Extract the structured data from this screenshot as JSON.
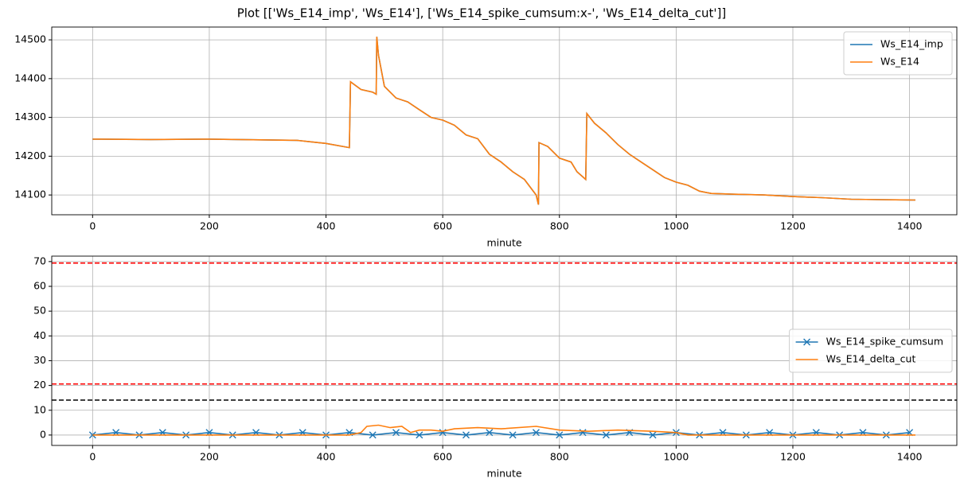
{
  "title": "Plot [['Ws_E14_imp', 'Ws_E14'], ['Ws_E14_spike_cumsum:x-', 'Ws_E14_delta_cut']]",
  "chart_data": [
    {
      "type": "line",
      "xlabel": "minute",
      "grid": true,
      "legend": "upper right",
      "xlim": [
        -70,
        1481
      ],
      "xticks": [
        0,
        200,
        400,
        600,
        800,
        1000,
        1200,
        1400
      ],
      "ylim": [
        14049,
        14533
      ],
      "yticks": [
        14100,
        14200,
        14300,
        14400,
        14500
      ],
      "x": [
        0,
        100,
        200,
        300,
        350,
        400,
        440,
        442,
        460,
        480,
        486,
        487,
        490,
        500,
        520,
        540,
        560,
        580,
        600,
        620,
        640,
        660,
        680,
        700,
        720,
        740,
        760,
        764,
        765,
        780,
        800,
        820,
        830,
        845,
        847,
        860,
        880,
        900,
        920,
        940,
        960,
        980,
        1000,
        1020,
        1040,
        1060,
        1100,
        1150,
        1200,
        1250,
        1300,
        1350,
        1410
      ],
      "series": [
        {
          "name": "Ws_E14_imp",
          "color": "#1f77b4",
          "values": [
            14244,
            14243,
            14244,
            14242,
            14241,
            14233,
            14222,
            14392,
            14372,
            14365,
            14360,
            14508,
            14460,
            14380,
            14350,
            14340,
            14320,
            14300,
            14293,
            14280,
            14255,
            14245,
            14205,
            14185,
            14160,
            14140,
            14100,
            14075,
            14235,
            14225,
            14195,
            14185,
            14160,
            14140,
            14310,
            14285,
            14260,
            14230,
            14205,
            14185,
            14165,
            14145,
            14133,
            14125,
            14110,
            14104,
            14102,
            14100,
            14096,
            14093,
            14089,
            14088,
            14087
          ]
        },
        {
          "name": "Ws_E14",
          "color": "#ff7f0e",
          "values": [
            14244,
            14243,
            14244,
            14242,
            14241,
            14233,
            14222,
            14392,
            14372,
            14365,
            14360,
            14508,
            14460,
            14380,
            14350,
            14340,
            14320,
            14300,
            14293,
            14280,
            14255,
            14245,
            14205,
            14185,
            14160,
            14140,
            14100,
            14075,
            14235,
            14225,
            14195,
            14185,
            14160,
            14140,
            14310,
            14285,
            14260,
            14230,
            14205,
            14185,
            14165,
            14145,
            14133,
            14125,
            14110,
            14104,
            14102,
            14100,
            14096,
            14093,
            14089,
            14088,
            14087
          ]
        }
      ]
    },
    {
      "type": "line",
      "xlabel": "minute",
      "grid": true,
      "legend": "center right",
      "xlim": [
        -70,
        1481
      ],
      "xticks": [
        0,
        200,
        400,
        600,
        800,
        1000,
        1200,
        1400
      ],
      "ylim": [
        -4.2,
        72.2
      ],
      "yticks": [
        0,
        10,
        20,
        30,
        40,
        50,
        60,
        70
      ],
      "hlines": [
        {
          "value": 69.4,
          "color": "#ff0000",
          "linestyle": "dashed"
        },
        {
          "value": 20.6,
          "color": "#ff0000",
          "linestyle": "dashed"
        },
        {
          "value": 14.1,
          "color": "#000000",
          "linestyle": "dashed"
        }
      ],
      "series": [
        {
          "name": "Ws_E14_spike_cumsum",
          "color": "#1f77b4",
          "marker": "x",
          "x": [
            0,
            40,
            80,
            120,
            160,
            200,
            240,
            280,
            320,
            360,
            400,
            440,
            480,
            520,
            560,
            600,
            640,
            680,
            720,
            760,
            800,
            840,
            880,
            920,
            960,
            1000,
            1040,
            1080,
            1120,
            1160,
            1200,
            1240,
            1280,
            1320,
            1360,
            1400
          ],
          "values": [
            0,
            1,
            0,
            1,
            0,
            1,
            0,
            1,
            0,
            1,
            0,
            1,
            0,
            1,
            0,
            1,
            0,
            1,
            0,
            1,
            0,
            1,
            0,
            1,
            0,
            1,
            0,
            1,
            0,
            1,
            0,
            1,
            0,
            1,
            0,
            1
          ]
        },
        {
          "name": "Ws_E14_delta_cut",
          "color": "#ff7f0e",
          "x": [
            0,
            440,
            460,
            470,
            490,
            510,
            530,
            545,
            560,
            580,
            600,
            620,
            660,
            700,
            760,
            800,
            850,
            900,
            960,
            1000,
            1020,
            1410
          ],
          "values": [
            0,
            0,
            1,
            3.5,
            4,
            3,
            3.5,
            1,
            2,
            2,
            1.5,
            2.5,
            3,
            2.5,
            3.5,
            2,
            1.5,
            2,
            1.5,
            1,
            0,
            0
          ]
        }
      ]
    }
  ]
}
